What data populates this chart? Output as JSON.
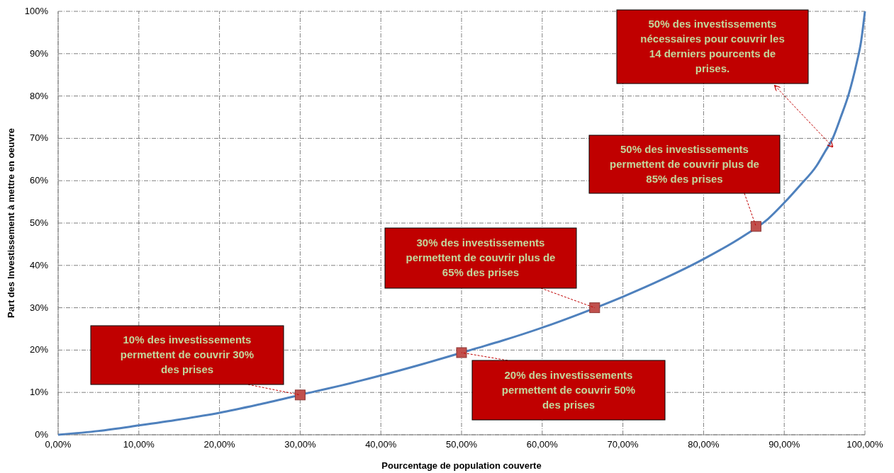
{
  "chart_data": {
    "type": "line",
    "xlabel": "Pourcentage de population couverte",
    "ylabel": "Part des Investissement à mettre en oeuvre",
    "xlim": [
      0,
      100
    ],
    "ylim": [
      0,
      100
    ],
    "xticks": [
      {
        "value": 0,
        "label": "0,00%"
      },
      {
        "value": 10,
        "label": "10,00%"
      },
      {
        "value": 20,
        "label": "20,00%"
      },
      {
        "value": 30,
        "label": "30,00%"
      },
      {
        "value": 40,
        "label": "40,00%"
      },
      {
        "value": 50,
        "label": "50,00%"
      },
      {
        "value": 60,
        "label": "60,00%"
      },
      {
        "value": 70,
        "label": "70,00%"
      },
      {
        "value": 80,
        "label": "80,00%"
      },
      {
        "value": 90,
        "label": "90,00%"
      },
      {
        "value": 100,
        "label": "100,00%"
      }
    ],
    "yticks": [
      {
        "value": 0,
        "label": "0%"
      },
      {
        "value": 10,
        "label": "10%"
      },
      {
        "value": 20,
        "label": "20%"
      },
      {
        "value": 30,
        "label": "30%"
      },
      {
        "value": 40,
        "label": "40%"
      },
      {
        "value": 50,
        "label": "50%"
      },
      {
        "value": 60,
        "label": "60%"
      },
      {
        "value": 70,
        "label": "70%"
      },
      {
        "value": 80,
        "label": "80%"
      },
      {
        "value": 90,
        "label": "90%"
      },
      {
        "value": 100,
        "label": "100%"
      }
    ],
    "grid": true,
    "series": [
      {
        "color": "#4f81bd",
        "marker": "none",
        "x": [
          0,
          5,
          10,
          15,
          20,
          25,
          32,
          35,
          40,
          45,
          52,
          55,
          60,
          65,
          70,
          75,
          80,
          85,
          88,
          90,
          92,
          94,
          95,
          96,
          97,
          98,
          98.5,
          99,
          99.5,
          100
        ],
        "values": [
          0,
          0.9,
          2.2,
          3.6,
          5.2,
          7.2,
          10.3,
          11.6,
          14,
          16.6,
          20.5,
          22.2,
          25.3,
          28.8,
          32.6,
          36.8,
          41.5,
          47,
          51,
          54.8,
          59,
          63.5,
          66.7,
          70,
          75,
          80.5,
          84,
          88,
          92.6,
          100
        ]
      },
      {
        "type": "scatter",
        "color": "#c0504d",
        "marker": "square",
        "x": [
          30,
          50,
          66.5,
          86.5
        ],
        "values": [
          9.4,
          19.4,
          30,
          49.2
        ]
      }
    ],
    "annotations": [
      {
        "text": "10% des investissements\npermettent de couvrir 30%\ndes prises",
        "x": 30,
        "y": 9.4
      },
      {
        "text": "20% des investissements\npermettent de couvrir 50%\ndes prises",
        "x": 50,
        "y": 19.4
      },
      {
        "text": "30% des investissements\npermettent de couvrir plus de\n65% des prises",
        "x": 66.5,
        "y": 30
      },
      {
        "text": "50% des investissements\npermettent de couvrir plus de\n85% des prises",
        "x": 86.5,
        "y": 49.2
      },
      {
        "text": "50% des investissements\nnécessaires pour couvrir les\n14 derniers pourcents de\nprises.",
        "x": 96,
        "y": 68
      }
    ]
  }
}
